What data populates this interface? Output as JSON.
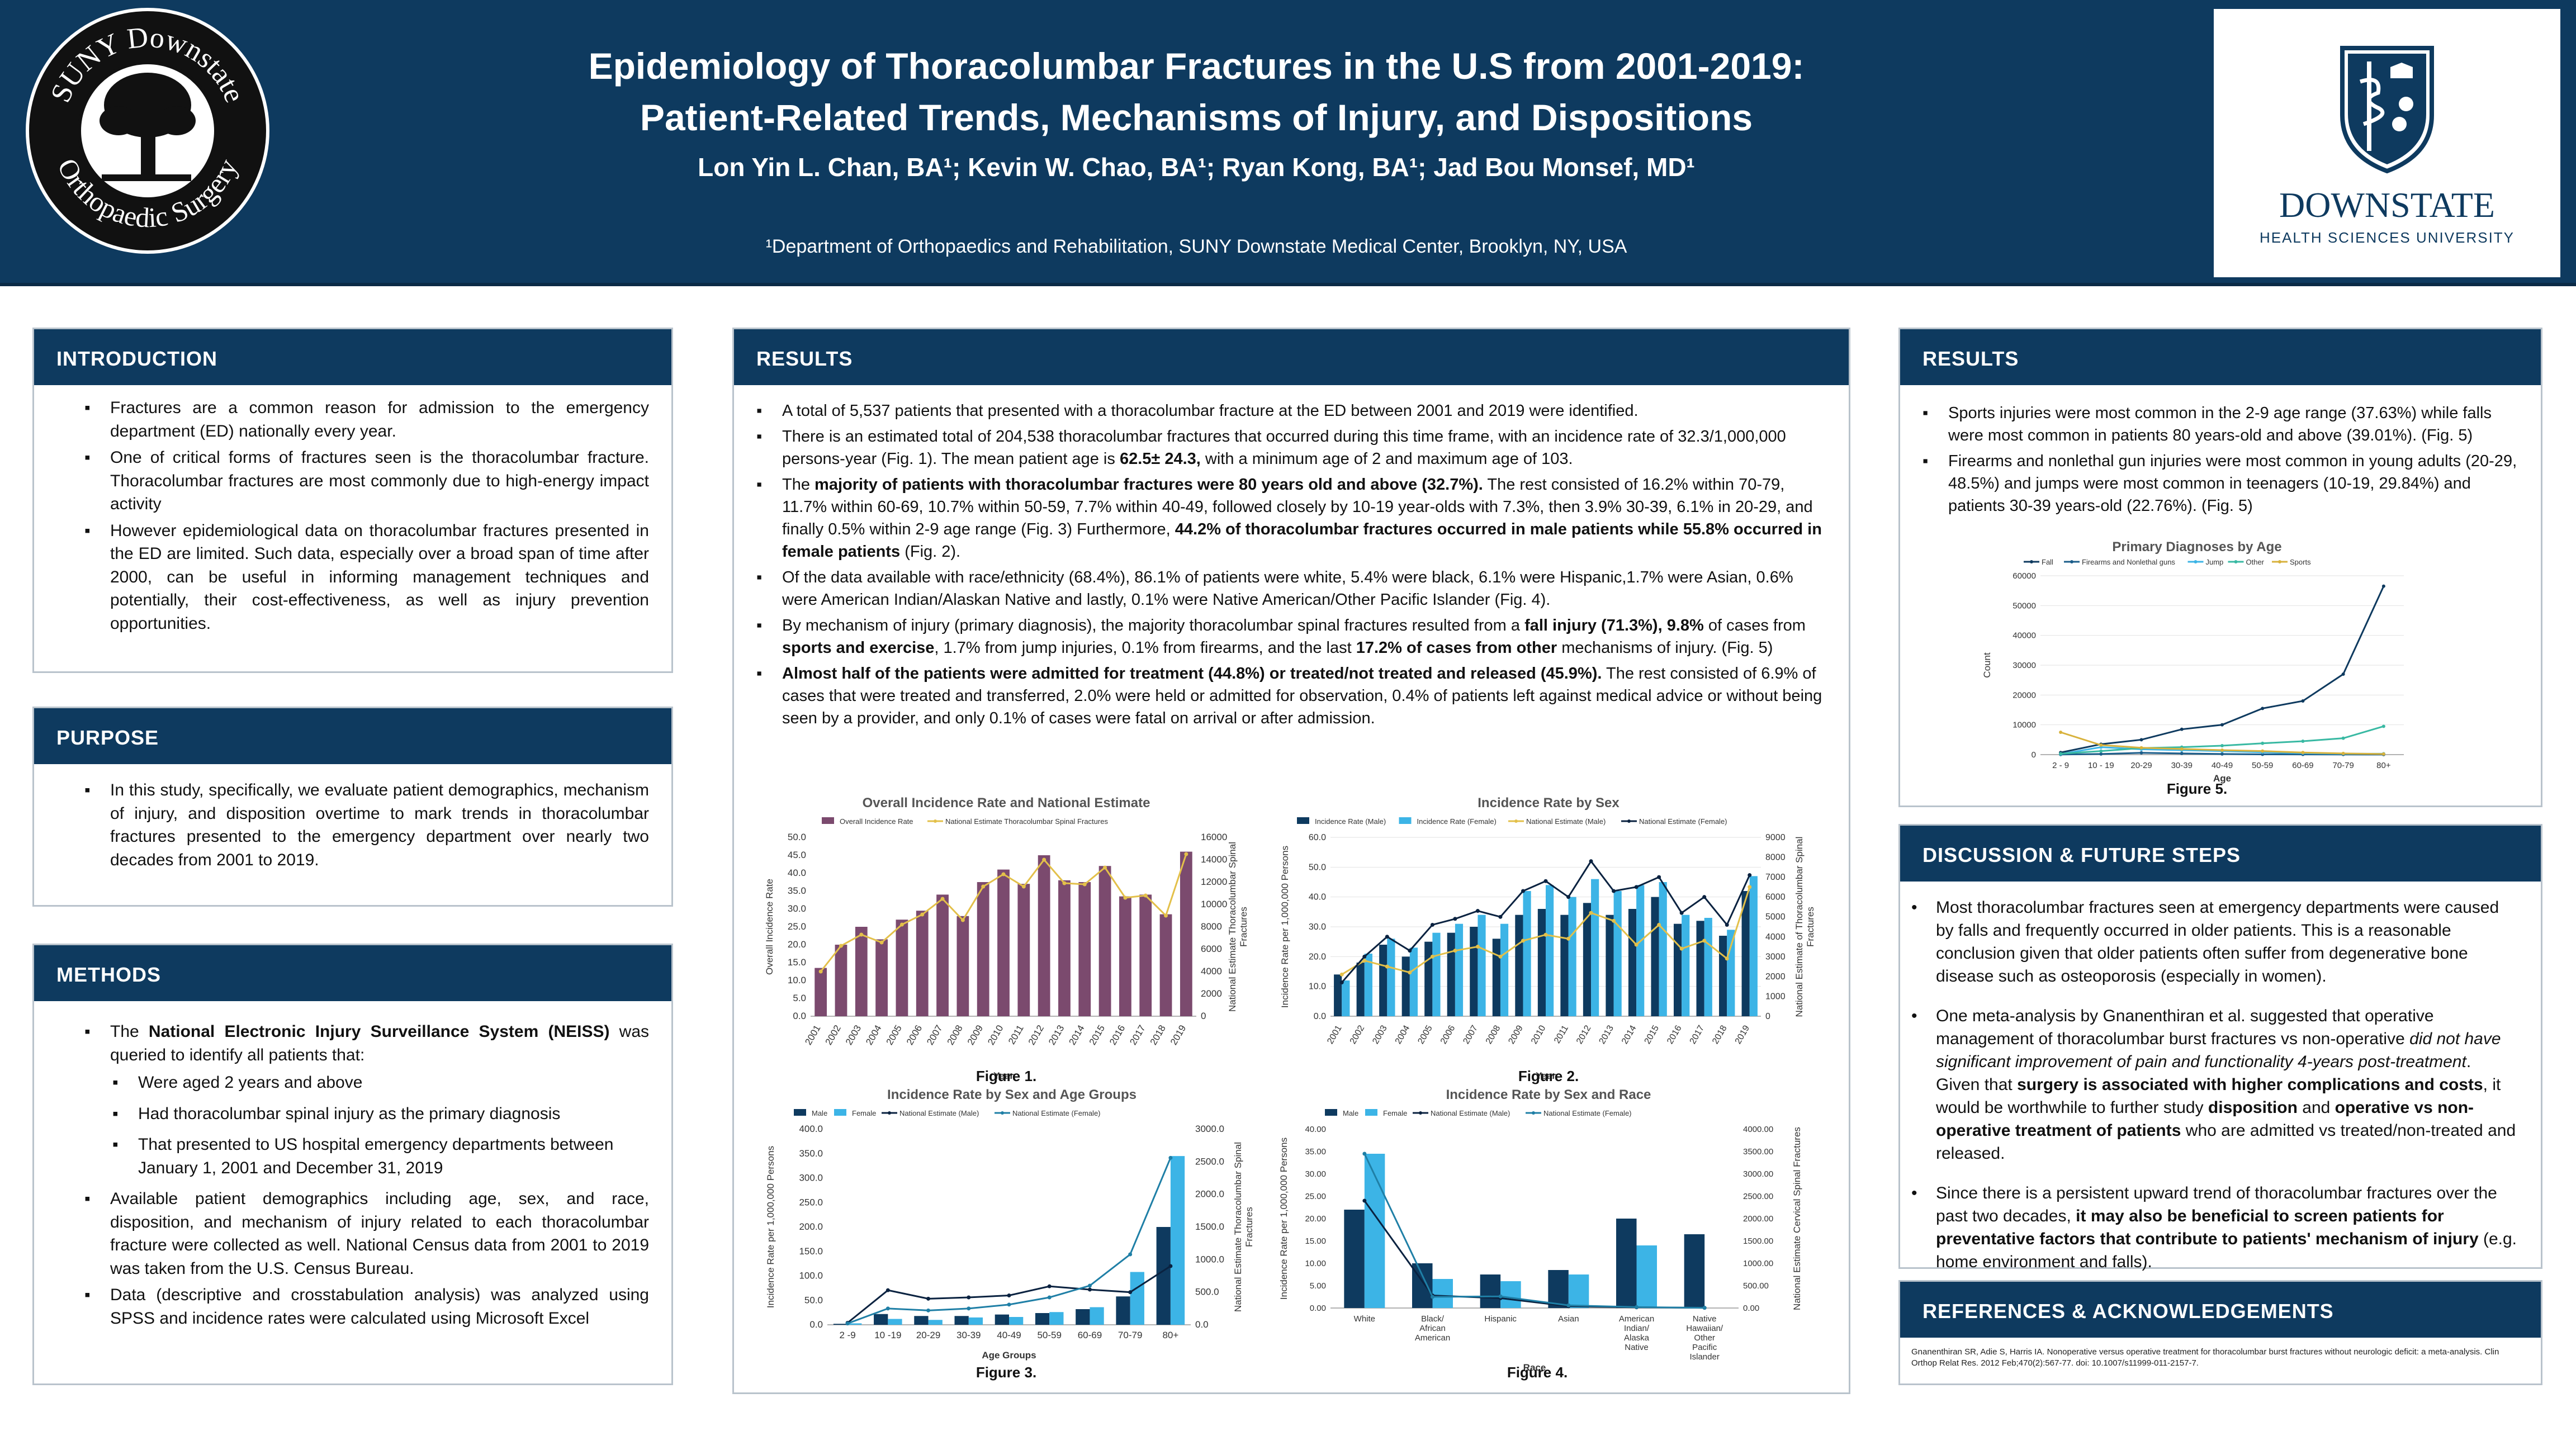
{
  "header": {
    "title_line1": "Epidemiology of Thoracolumbar Fractures in the U.S from 2001-2019:",
    "title_line2": "Patient-Related Trends, Mechanisms of Injury, and Dispositions",
    "authors": "Lon Yin L. Chan, BA¹; Kevin W. Chao, BA¹; Ryan Kong, BA¹;  Jad Bou Monsef, MD¹",
    "affiliation": "¹Department of Orthopaedics and Rehabilitation, SUNY Downstate Medical Center, Brooklyn, NY, USA",
    "seal_top": "SUNY Downstate",
    "seal_bottom": "Orthopaedic Surgery",
    "logo_name": "DOWNSTATE",
    "logo_sub": "HEALTH SCIENCES UNIVERSITY",
    "navy": "#0e3a5f"
  },
  "introduction": {
    "heading": "INTRODUCTION",
    "bullets": [
      "Fractures are a common reason for admission to the emergency department (ED) nationally every year.",
      "One of critical forms of fractures seen is the thoracolumbar fracture. Thoracolumbar fractures  are most commonly due to high-energy impact activity",
      "However epidemiological data on thoracolumbar fractures presented in the ED are limited. Such data, especially over a broad span of time after 2000, can be useful in informing management techniques and potentially, their cost-effectiveness, as well as injury prevention opportunities."
    ]
  },
  "purpose": {
    "heading": "PURPOSE",
    "bullets": [
      "In this study, specifically, we evaluate patient demographics, mechanism of injury, and disposition overtime to mark trends in thoracolumbar fractures presented to the emergency department over nearly two decades from 2001 to 2019."
    ]
  },
  "methods": {
    "heading": "METHODS",
    "b1_pre": "The ",
    "b1_bold": "National Electronic Injury Surveillance System (NEISS)",
    "b1_post": " was queried to identify all patients that:",
    "sub": [
      "Were aged 2 years and above",
      "Had thoracolumbar spinal injury as the primary diagnosis",
      "That presented to US hospital emergency departments between January 1, 2001 and December 31, 2019"
    ],
    "b2": "Available patient demographics including age, sex, and race, disposition, and mechanism of injury related to each thoracolumbar fracture were collected as well. National Census data from 2001 to 2019 was taken from the U.S. Census Bureau.",
    "b3": "Data (descriptive and crosstabulation analysis) was analyzed using SPSS and incidence rates were calculated using Microsoft Excel"
  },
  "results_mid": {
    "heading": "RESULTS",
    "r1": "A total of 5,537 patients that presented with a thoracolumbar fracture at the ED between 2001 and 2019 were identified.",
    "r2_pre": "There is an estimated total of 204,538 thoracolumbar fractures that occurred during this time frame, with an incidence rate of 32.3/1,000,000 persons-year (Fig. 1). The mean patient age is ",
    "r2_bold": "62.5± 24.3,",
    "r2_post": " with a minimum age of 2 and maximum age of 103.",
    "r3_pre": "The ",
    "r3_bold": "majority of patients with thoracolumbar fractures were 80 years old and above (32.7%).",
    "r3_mid": " The rest consisted of 16.2% within 70-79, 11.7% within 60-69, 10.7% within 50-59, 7.7% within 40-49, followed closely by 10-19 year-olds with 7.3%, then 3.9% 30-39, 6.1% in 20-29, and finally 0.5% within 2-9 age range (Fig. 3)  Furthermore, ",
    "r3_bold2": "44.2% of thoracolumbar fractures occurred in male patients while 55.8% occurred in female patients",
    "r3_post": " (Fig. 2).",
    "r4": "Of the data available with race/ethnicity (68.4%), 86.1% of patients were white, 5.4% were black, 6.1% were Hispanic,1.7% were Asian, 0.6% were American Indian/Alaskan Native and lastly, 0.1% were Native American/Other Pacific Islander (Fig. 4).",
    "r5_pre": "By mechanism of injury (primary diagnosis), the majority thoracolumbar spinal fractures resulted from a ",
    "r5_bold1": "fall injury (71.3%), 9.8%",
    "r5_mid": " of cases from ",
    "r5_bold2": "sports and exercise",
    "r5_mid2": ", 1.7% from jump injuries, 0.1% from firearms, and the last ",
    "r5_bold3": "17.2% of cases from other",
    "r5_post": " mechanisms of injury. (Fig. 5)",
    "r6_bold": "Almost half of the patients were admitted for treatment (44.8%) or treated/not treated and released (45.9%).",
    "r6_post": " The rest consisted of 6.9% of cases that were treated and transferred, 2.0% were held or admitted for observation, 0.4% of patients left against medical advice or without being seen by a provider, and only 0.1% of cases were fatal on arrival or after admission."
  },
  "results_right": {
    "heading": "RESULTS",
    "b1": "Sports injuries were most common in the 2-9 age range (37.63%) while falls were most common in patients 80 years-old and above (39.01%). (Fig. 5)",
    "b2": "Firearms and nonlethal gun injuries were most common in young adults (20-29, 48.5%) and jumps were most common in teenagers (10-19, 29.84%) and patients 30-39 years-old (22.76%). (Fig. 5)"
  },
  "discussion": {
    "heading": "DISCUSSION & FUTURE STEPS",
    "d1": "Most thoracolumbar fractures seen at emergency departments were caused by falls and frequently occurred in older patients. This is a reasonable conclusion given that older patients often suffer from degenerative bone disease such as osteoporosis (especially in women).",
    "d2_pre": "One meta-analysis by Gnanenthiran et al. suggested that operative management of thoracolumbar burst fractures vs non-operative ",
    "d2_ital": "did not have significant improvement of pain and functionality 4-years post-treatment",
    "d2_mid": ". Given that ",
    "d2_bold1": "surgery is associated with higher complications and costs",
    "d2_mid2": ", it would be worthwhile to further study ",
    "d2_bold2": "disposition",
    "d2_mid3": " and ",
    "d2_bold3": "operative vs non-operative treatment of patients",
    "d2_post": " who are admitted vs treated/non-treated and released.",
    "d3_pre": "Since there is a persistent upward trend of thoracolumbar fractures over the past two decades, ",
    "d3_bold": "it may also be beneficial to screen patients for preventative factors that contribute to patients' mechanism of injury",
    "d3_post": " (e.g. home environment and falls)."
  },
  "references": {
    "heading": "REFERENCES & ACKNOWLEDGEMENTS",
    "text": "Gnanenthiran SR, Adie S, Harris IA. Nonoperative versus operative treatment for thoracolumbar burst fractures without neurologic deficit: a meta-analysis. Clin Orthop Relat Res. 2012 Feb;470(2):567-77. doi: 10.1007/s11999-011-2157-7."
  },
  "chart_data": [
    {
      "id": "fig1",
      "type": "bar+line",
      "caption": "Figure 1.",
      "title": "Overall Incidence Rate and National Estimate",
      "xlabel": "Year",
      "ylabel": "Overall Incidence Rate",
      "y2label": "National Estimate Thoracolumbar Spinal Fractures",
      "ylim": [
        0,
        50
      ],
      "y2lim": [
        0,
        16000
      ],
      "yticks": [
        "0.0",
        "5.0",
        "10.0",
        "15.0",
        "20.0",
        "25.0",
        "30.0",
        "35.0",
        "40.0",
        "45.0",
        "50.0"
      ],
      "y2ticks": [
        "0",
        "2000",
        "4000",
        "6000",
        "8000",
        "10000",
        "12000",
        "14000",
        "16000"
      ],
      "categories": [
        "2001",
        "2002",
        "2003",
        "2004",
        "2005",
        "2006",
        "2007",
        "2008",
        "2009",
        "2010",
        "2011",
        "2012",
        "2013",
        "2014",
        "2015",
        "2016",
        "2017",
        "2018",
        "2019"
      ],
      "series": [
        {
          "name": "Overall Incidence Rate",
          "kind": "bar",
          "color": "#7b4a6e",
          "values": [
            13.5,
            20,
            25,
            21.5,
            27,
            29.5,
            34,
            28,
            37.5,
            41,
            37,
            45,
            38,
            37.5,
            42,
            33.5,
            34,
            28.5,
            46
          ]
        },
        {
          "name": "National Estimate Thoracolumbar Spinal Fractures",
          "kind": "line",
          "color": "#e3c04a",
          "values": [
            4000,
            6300,
            7300,
            6600,
            8200,
            9100,
            10500,
            8600,
            11600,
            12700,
            11600,
            14000,
            11900,
            11800,
            13300,
            10600,
            10800,
            9000,
            14500
          ]
        }
      ]
    },
    {
      "id": "fig2",
      "type": "bar+line",
      "caption": "Figure 2.",
      "title": "Incidence Rate by Sex",
      "xlabel": "Year",
      "ylabel": "Incidence Rate per 1,000,000 Persons",
      "y2label": "National Estimate of Thoracolumbar Spinal Fractures",
      "ylim": [
        0,
        60
      ],
      "y2lim": [
        0,
        9000
      ],
      "yticks": [
        "0.0",
        "10.0",
        "20.0",
        "30.0",
        "40.0",
        "50.0",
        "60.0"
      ],
      "y2ticks": [
        "0",
        "1000",
        "2000",
        "3000",
        "4000",
        "5000",
        "6000",
        "7000",
        "8000",
        "9000"
      ],
      "categories": [
        "2001",
        "2002",
        "2003",
        "2004",
        "2005",
        "2006",
        "2007",
        "2008",
        "2009",
        "2010",
        "2011",
        "2012",
        "2013",
        "2014",
        "2015",
        "2016",
        "2017",
        "2018",
        "2019"
      ],
      "series": [
        {
          "name": "Incidence Rate (Male)",
          "kind": "bar",
          "color": "#0e3a5f",
          "values": [
            14,
            18,
            24,
            20,
            25,
            28,
            30,
            26,
            34,
            36,
            34,
            38,
            34,
            36,
            40,
            31,
            32,
            27,
            42
          ]
        },
        {
          "name": "Incidence Rate (Female)",
          "kind": "bar",
          "color": "#3cb4e6",
          "values": [
            12,
            21,
            26,
            23,
            28,
            31,
            34,
            31,
            42,
            44,
            40,
            46,
            42,
            44,
            45,
            34,
            33,
            29,
            47
          ]
        },
        {
          "name": "National Estimate (Male)",
          "kind": "line",
          "color": "#e3c04a",
          "values": [
            2100,
            2800,
            2500,
            2200,
            3000,
            3300,
            3500,
            3000,
            3800,
            4100,
            3900,
            5200,
            4800,
            3600,
            4600,
            3400,
            3800,
            2900,
            6500
          ]
        },
        {
          "name": "National Estimate (Female)",
          "kind": "line",
          "color": "#0a2240",
          "values": [
            1700,
            3000,
            4000,
            3300,
            4600,
            4900,
            5300,
            5000,
            6300,
            6800,
            6000,
            7800,
            6300,
            6500,
            7000,
            5200,
            6000,
            4600,
            7100
          ]
        }
      ]
    },
    {
      "id": "fig3",
      "type": "bar+line",
      "caption": "Figure 3.",
      "title": "Incidence Rate by Sex and Age Groups",
      "xlabel": "Age Groups",
      "ylabel": "Incidence Rate per 1,000,000 Persons",
      "y2label": "National Estimate Thoracolumbar Spinal Fractures",
      "ylim": [
        0,
        400
      ],
      "y2lim": [
        0,
        3000
      ],
      "yticks": [
        "0.0",
        "50.0",
        "100.0",
        "150.0",
        "200.0",
        "250.0",
        "300.0",
        "350.0",
        "400.0"
      ],
      "y2ticks": [
        "0.0",
        "500.0",
        "1000.0",
        "1500.0",
        "2000.0",
        "2500.0",
        "3000.0"
      ],
      "categories": [
        "2 -9",
        "10 -19",
        "20-29",
        "30-39",
        "40-49",
        "50-59",
        "60-69",
        "70-79",
        "80+"
      ],
      "series": [
        {
          "name": "Male",
          "kind": "bar",
          "color": "#0e3a5f",
          "values": [
            2,
            22,
            18,
            18,
            21,
            24,
            32,
            58,
            200
          ]
        },
        {
          "name": "Female",
          "kind": "bar",
          "color": "#3cb4e6",
          "values": [
            3,
            12,
            10,
            15,
            16,
            26,
            36,
            108,
            345
          ]
        },
        {
          "name": "National Estimate (Male)",
          "kind": "line",
          "color": "#0a2240",
          "values": [
            30,
            530,
            400,
            420,
            450,
            590,
            540,
            500,
            900
          ]
        },
        {
          "name": "National Estimate (Female)",
          "kind": "line",
          "color": "#1f7fa6",
          "values": [
            20,
            250,
            220,
            250,
            310,
            420,
            600,
            1080,
            2560
          ]
        }
      ]
    },
    {
      "id": "fig4",
      "type": "bar+line",
      "caption": "Figure 4.",
      "title": "Incidence Rate by Sex and Race",
      "xlabel": "Race",
      "ylabel": "Incidence Rate per 1,000,000 Persons",
      "y2label": "National Estimate Cervical Spinal Fractures",
      "ylim": [
        0,
        40
      ],
      "y2lim": [
        0,
        4000
      ],
      "yticks": [
        "0.00",
        "5.00",
        "10.00",
        "15.00",
        "20.00",
        "25.00",
        "30.00",
        "35.00",
        "40.00"
      ],
      "y2ticks": [
        "0.00",
        "500.00",
        "1000.00",
        "1500.00",
        "2000.00",
        "2500.00",
        "3000.00",
        "3500.00",
        "4000.00"
      ],
      "categories": [
        "White",
        "Black/ African American",
        "Hispanic",
        "Asian",
        "American Indian/ Alaska Native",
        "Native Hawaiian/ Other Pacific Islander"
      ],
      "series": [
        {
          "name": "Male",
          "kind": "bar",
          "color": "#0e3a5f",
          "values": [
            22,
            10,
            7.5,
            8.5,
            20,
            16.5
          ]
        },
        {
          "name": "Female",
          "kind": "bar",
          "color": "#3cb4e6",
          "values": [
            34.5,
            6.5,
            6,
            7.5,
            14,
            0
          ]
        },
        {
          "name": "National Estimate (Male)",
          "kind": "line",
          "color": "#0a2240",
          "values": [
            2400,
            280,
            220,
            40,
            15,
            5
          ]
        },
        {
          "name": "National Estimate (Female)",
          "kind": "line",
          "color": "#1f7fa6",
          "values": [
            3450,
            250,
            260,
            60,
            20,
            5
          ]
        }
      ]
    },
    {
      "id": "fig5",
      "type": "line",
      "caption": "Figure 5.",
      "title": "Primary Diagnoses by Age",
      "xlabel": "Age",
      "ylabel": "Count",
      "ylim": [
        0,
        60000
      ],
      "yticks": [
        "0",
        "10000",
        "20000",
        "30000",
        "40000",
        "50000",
        "60000"
      ],
      "categories": [
        "2 - 9",
        "10 - 19",
        "20-29",
        "30-39",
        "40-49",
        "50-59",
        "60-69",
        "70-79",
        "80+"
      ],
      "series": [
        {
          "name": "Fall",
          "color": "#0e3a5f",
          "values": [
            700,
            3500,
            5000,
            8500,
            10000,
            15500,
            18000,
            27000,
            56500
          ]
        },
        {
          "name": "Firearms and Nonlethal guns",
          "color": "#1b5d8a",
          "values": [
            50,
            200,
            600,
            400,
            200,
            100,
            80,
            50,
            30
          ]
        },
        {
          "name": "Jump",
          "color": "#3cb4e6",
          "values": [
            200,
            2500,
            1800,
            1500,
            1200,
            800,
            500,
            300,
            300
          ]
        },
        {
          "name": "Other",
          "color": "#39b9a3",
          "values": [
            300,
            1200,
            2200,
            2500,
            3000,
            3800,
            4500,
            5500,
            9500
          ]
        },
        {
          "name": "Sports",
          "color": "#d8b23c",
          "values": [
            7500,
            3200,
            2300,
            1900,
            1500,
            1200,
            700,
            400,
            200
          ]
        }
      ]
    }
  ]
}
